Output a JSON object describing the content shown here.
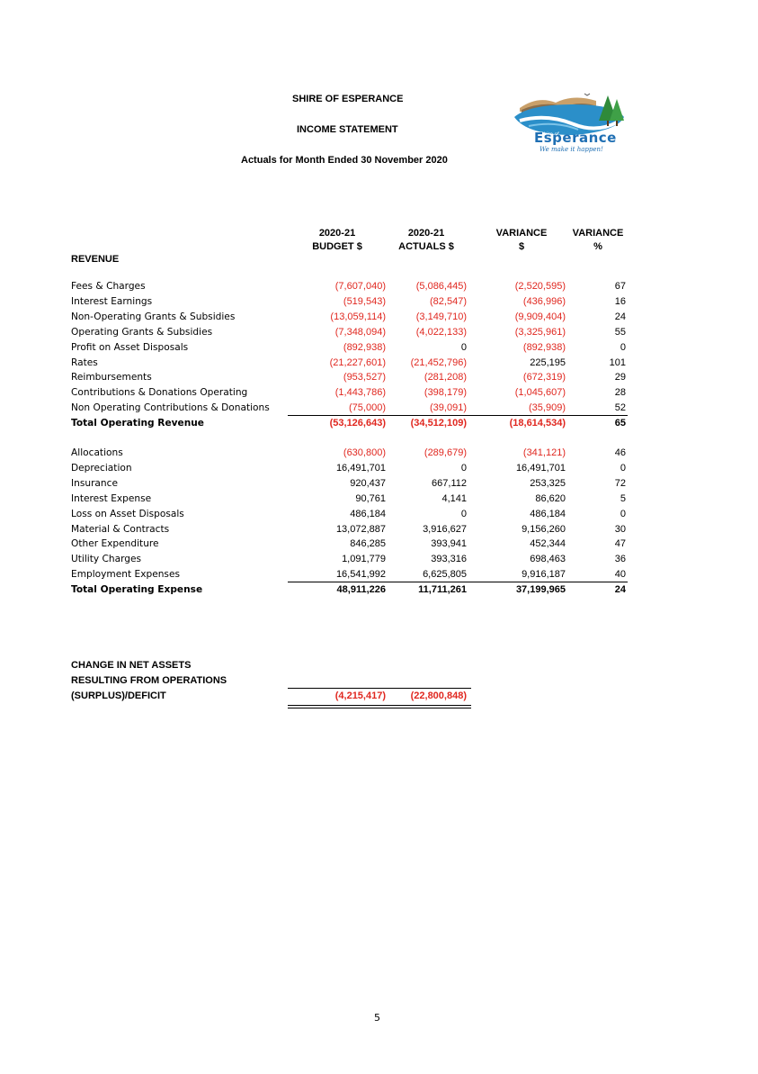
{
  "header": {
    "org": "SHIRE OF ESPERANCE",
    "statement": "INCOME STATEMENT",
    "period": "Actuals for Month Ended 30 November 2020"
  },
  "logo": {
    "name": "Shire of Esperance",
    "wordmark_small": "Shire of",
    "wordmark": "Esperance",
    "tagline": "We make it happen!"
  },
  "columns": [
    {
      "line1": "2020-21",
      "line2": "BUDGET $"
    },
    {
      "line1": "2020-21",
      "line2": "ACTUALS $"
    },
    {
      "line1": "VARIANCE",
      "line2": "$"
    },
    {
      "line1": "VARIANCE",
      "line2": "%"
    }
  ],
  "revenue": {
    "heading": "REVENUE",
    "rows": [
      {
        "label": "Fees & Charges",
        "budget": "(7,607,040)",
        "actual": "(5,086,445)",
        "var": "(2,520,595)",
        "pct": "67"
      },
      {
        "label": "Interest Earnings",
        "budget": "(519,543)",
        "actual": "(82,547)",
        "var": "(436,996)",
        "pct": "16"
      },
      {
        "label": "Non-Operating Grants & Subsidies",
        "budget": "(13,059,114)",
        "actual": "(3,149,710)",
        "var": "(9,909,404)",
        "pct": "24"
      },
      {
        "label": "Operating Grants & Subsidies",
        "budget": "(7,348,094)",
        "actual": "(4,022,133)",
        "var": "(3,325,961)",
        "pct": "55"
      },
      {
        "label": "Profit on Asset Disposals",
        "budget": "(892,938)",
        "actual": "0",
        "var": "(892,938)",
        "pct": "0"
      },
      {
        "label": "Rates",
        "budget": "(21,227,601)",
        "actual": "(21,452,796)",
        "var": "225,195",
        "pct": "101"
      },
      {
        "label": "Reimbursements",
        "budget": "(953,527)",
        "actual": "(281,208)",
        "var": "(672,319)",
        "pct": "29"
      },
      {
        "label": "Contributions & Donations Operating",
        "budget": "(1,443,786)",
        "actual": "(398,179)",
        "var": "(1,045,607)",
        "pct": "28"
      },
      {
        "label": "Non Operating Contributions & Donations",
        "budget": "(75,000)",
        "actual": "(39,091)",
        "var": "(35,909)",
        "pct": "52"
      }
    ],
    "total": {
      "label": "Total Operating Revenue",
      "budget": "(53,126,643)",
      "actual": "(34,512,109)",
      "var": "(18,614,534)",
      "pct": "65"
    }
  },
  "expense": {
    "rows": [
      {
        "label": "Allocations",
        "budget": "(630,800)",
        "actual": "(289,679)",
        "var": "(341,121)",
        "pct": "46"
      },
      {
        "label": "Depreciation",
        "budget": "16,491,701",
        "actual": "0",
        "var": "16,491,701",
        "pct": "0"
      },
      {
        "label": "Insurance",
        "budget": "920,437",
        "actual": "667,112",
        "var": "253,325",
        "pct": "72"
      },
      {
        "label": "Interest Expense",
        "budget": "90,761",
        "actual": "4,141",
        "var": "86,620",
        "pct": "5"
      },
      {
        "label": "Loss on Asset Disposals",
        "budget": "486,184",
        "actual": "0",
        "var": "486,184",
        "pct": "0"
      },
      {
        "label": "Material & Contracts",
        "budget": "13,072,887",
        "actual": "3,916,627",
        "var": "9,156,260",
        "pct": "30"
      },
      {
        "label": "Other Expenditure",
        "budget": "846,285",
        "actual": "393,941",
        "var": "452,344",
        "pct": "47"
      },
      {
        "label": "Utility Charges",
        "budget": "1,091,779",
        "actual": "393,316",
        "var": "698,463",
        "pct": "36"
      },
      {
        "label": "Employment Expenses",
        "budget": "16,541,992",
        "actual": "6,625,805",
        "var": "9,916,187",
        "pct": "40"
      }
    ],
    "total": {
      "label": "Total Operating Expense",
      "budget": "48,911,226",
      "actual": "11,711,261",
      "var": "37,199,965",
      "pct": "24"
    }
  },
  "net": {
    "line1": "CHANGE IN NET ASSETS",
    "line2": "RESULTING FROM OPERATIONS",
    "line3": "(SURPLUS)/DEFICIT",
    "budget": "(4,215,417)",
    "actual": "(22,800,848)"
  },
  "footer": {
    "page_number": "5"
  },
  "colors": {
    "negative": "#e0271f",
    "text": "#000000"
  }
}
